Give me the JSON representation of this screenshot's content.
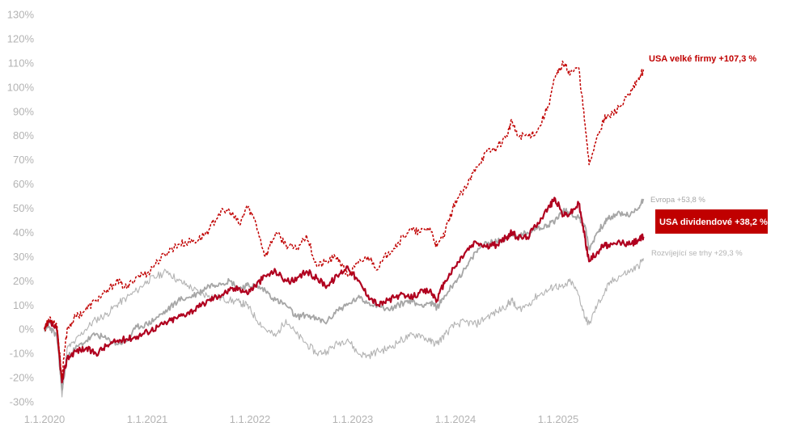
{
  "chart_data": {
    "type": "line",
    "title": "",
    "xlabel": "",
    "ylabel": "",
    "ylim": [
      -30,
      130
    ],
    "y_ticks": [
      "130%",
      "120%",
      "110%",
      "100%",
      "90%",
      "80%",
      "70%",
      "60%",
      "50%",
      "40%",
      "30%",
      "20%",
      "10%",
      "0%",
      "-10%",
      "-20%",
      "-30%"
    ],
    "y_tick_values": [
      130,
      120,
      110,
      100,
      90,
      80,
      70,
      60,
      50,
      40,
      30,
      20,
      10,
      0,
      -10,
      -20,
      -30
    ],
    "x_ticks": [
      "1.1.2020",
      "1.1.2021",
      "1.1.2022",
      "1.1.2023",
      "1.1.2024",
      "1.1.2025"
    ],
    "x_tick_values": [
      2020,
      2021,
      2022,
      2023,
      2024,
      2025
    ],
    "xlim": [
      2020,
      2025.83
    ],
    "grid": false,
    "colors": {
      "usa_large": "#c00000",
      "usa_dividend": "#b0001f",
      "europe": "#a6a6a6",
      "emerging": "#b3b3b3",
      "label_box": "#c00000",
      "tick": "#b3b3b3"
    },
    "series": [
      {
        "key": "usa_large",
        "name": "USA velké firmy +107,3 %",
        "x": [
          2020.0,
          2020.05,
          2020.12,
          2020.17,
          2020.22,
          2020.3,
          2020.4,
          2020.5,
          2020.6,
          2020.7,
          2020.8,
          2020.9,
          2021.0,
          2021.1,
          2021.2,
          2021.3,
          2021.4,
          2021.5,
          2021.6,
          2021.7,
          2021.8,
          2021.9,
          2021.97,
          2022.05,
          2022.15,
          2022.25,
          2022.35,
          2022.45,
          2022.55,
          2022.65,
          2022.75,
          2022.85,
          2022.95,
          2023.05,
          2023.15,
          2023.25,
          2023.35,
          2023.45,
          2023.55,
          2023.65,
          2023.75,
          2023.82,
          2023.9,
          2024.0,
          2024.1,
          2024.2,
          2024.3,
          2024.4,
          2024.5,
          2024.55,
          2024.6,
          2024.7,
          2024.8,
          2024.9,
          2024.97,
          2025.05,
          2025.12,
          2025.2,
          2025.26,
          2025.3,
          2025.38,
          2025.45,
          2025.5,
          2025.6,
          2025.7,
          2025.78,
          2025.83
        ],
        "values": [
          0,
          5,
          2,
          -20,
          0,
          5,
          8,
          12,
          15,
          20,
          17,
          22,
          23,
          28,
          32,
          35,
          36,
          37,
          41,
          48,
          49,
          43,
          51,
          45,
          30,
          40,
          35,
          33,
          39,
          26,
          28,
          30,
          22,
          27,
          30,
          25,
          32,
          36,
          41,
          40,
          42,
          34,
          40,
          53,
          58,
          67,
          73,
          75,
          80,
          86,
          80,
          80,
          82,
          92,
          104,
          110,
          106,
          108,
          85,
          68,
          80,
          87,
          88,
          92,
          97,
          103,
          107.3
        ]
      },
      {
        "key": "europe",
        "name": "Evropa +53,8 %",
        "x": [
          2020.0,
          2020.05,
          2020.12,
          2020.17,
          2020.22,
          2020.3,
          2020.4,
          2020.5,
          2020.6,
          2020.7,
          2020.8,
          2020.9,
          2021.0,
          2021.1,
          2021.2,
          2021.3,
          2021.4,
          2021.5,
          2021.6,
          2021.7,
          2021.8,
          2021.9,
          2021.97,
          2022.05,
          2022.15,
          2022.25,
          2022.35,
          2022.45,
          2022.55,
          2022.65,
          2022.75,
          2022.85,
          2022.95,
          2023.05,
          2023.15,
          2023.25,
          2023.35,
          2023.45,
          2023.55,
          2023.65,
          2023.75,
          2023.82,
          2023.9,
          2024.0,
          2024.1,
          2024.2,
          2024.3,
          2024.4,
          2024.5,
          2024.55,
          2024.6,
          2024.7,
          2024.8,
          2024.9,
          2024.97,
          2025.05,
          2025.12,
          2025.2,
          2025.26,
          2025.3,
          2025.38,
          2025.45,
          2025.5,
          2025.6,
          2025.7,
          2025.78,
          2025.83
        ],
        "values": [
          0,
          1,
          -3,
          -25,
          -12,
          -8,
          -5,
          -2,
          -4,
          -6,
          -5,
          1,
          2,
          5,
          8,
          12,
          13,
          15,
          18,
          19,
          20,
          17,
          18,
          18,
          16,
          12,
          10,
          5,
          6,
          4,
          3,
          8,
          10,
          13,
          11,
          10,
          8,
          10,
          12,
          10,
          11,
          9,
          14,
          20,
          25,
          32,
          36,
          36,
          38,
          40,
          38,
          40,
          42,
          43,
          45,
          49,
          48,
          46,
          43,
          33,
          40,
          44,
          46,
          48,
          47,
          50,
          53.8
        ]
      },
      {
        "key": "usa_dividend",
        "name": "USA dividendové +38,2 %",
        "x": [
          2020.0,
          2020.05,
          2020.12,
          2020.17,
          2020.22,
          2020.3,
          2020.4,
          2020.5,
          2020.6,
          2020.7,
          2020.8,
          2020.9,
          2021.0,
          2021.1,
          2021.2,
          2021.3,
          2021.4,
          2021.5,
          2021.6,
          2021.7,
          2021.8,
          2021.9,
          2021.97,
          2022.05,
          2022.15,
          2022.25,
          2022.35,
          2022.45,
          2022.55,
          2022.65,
          2022.75,
          2022.85,
          2022.95,
          2023.05,
          2023.15,
          2023.25,
          2023.35,
          2023.45,
          2023.55,
          2023.65,
          2023.75,
          2023.82,
          2023.9,
          2024.0,
          2024.1,
          2024.2,
          2024.3,
          2024.4,
          2024.5,
          2024.55,
          2024.6,
          2024.7,
          2024.8,
          2024.9,
          2024.97,
          2025.05,
          2025.12,
          2025.2,
          2025.26,
          2025.3,
          2025.38,
          2025.45,
          2025.5,
          2025.6,
          2025.7,
          2025.78,
          2025.83
        ],
        "values": [
          0,
          3,
          0,
          -22,
          -12,
          -9,
          -8,
          -10,
          -7,
          -5,
          -4,
          -3,
          -1,
          1,
          3,
          5,
          7,
          9,
          12,
          14,
          16,
          17,
          15,
          18,
          22,
          24,
          20,
          20,
          24,
          21,
          18,
          22,
          26,
          20,
          14,
          10,
          12,
          14,
          13,
          15,
          16,
          12,
          20,
          26,
          32,
          36,
          34,
          35,
          38,
          40,
          38,
          38,
          44,
          50,
          54,
          47,
          48,
          52,
          38,
          28,
          32,
          35,
          34,
          36,
          35,
          37,
          38.2
        ]
      },
      {
        "key": "emerging",
        "name": "Rozvíjející se trhy +29,3 %",
        "x": [
          2020.0,
          2020.05,
          2020.12,
          2020.17,
          2020.22,
          2020.3,
          2020.4,
          2020.5,
          2020.6,
          2020.7,
          2020.8,
          2020.9,
          2021.0,
          2021.1,
          2021.2,
          2021.3,
          2021.4,
          2021.5,
          2021.6,
          2021.7,
          2021.8,
          2021.9,
          2021.97,
          2022.05,
          2022.15,
          2022.25,
          2022.35,
          2022.45,
          2022.55,
          2022.65,
          2022.75,
          2022.85,
          2022.95,
          2023.05,
          2023.15,
          2023.25,
          2023.35,
          2023.45,
          2023.55,
          2023.65,
          2023.75,
          2023.82,
          2023.9,
          2024.0,
          2024.1,
          2024.2,
          2024.3,
          2024.4,
          2024.5,
          2024.55,
          2024.6,
          2024.7,
          2024.8,
          2024.9,
          2024.97,
          2025.05,
          2025.12,
          2025.2,
          2025.26,
          2025.3,
          2025.38,
          2025.45,
          2025.5,
          2025.6,
          2025.7,
          2025.78,
          2025.83
        ],
        "values": [
          0,
          3,
          0,
          -28,
          -8,
          -5,
          0,
          4,
          6,
          10,
          13,
          16,
          20,
          22,
          24,
          20,
          18,
          15,
          14,
          13,
          12,
          11,
          10,
          5,
          0,
          -3,
          4,
          -2,
          -6,
          -10,
          -9,
          -6,
          -4,
          -10,
          -11,
          -9,
          -8,
          -5,
          -3,
          -2,
          -5,
          -6,
          -2,
          2,
          3,
          2,
          5,
          7,
          10,
          12,
          8,
          10,
          14,
          16,
          18,
          17,
          20,
          14,
          5,
          2,
          10,
          15,
          19,
          22,
          24,
          26,
          29.3
        ]
      }
    ],
    "annotations": [
      {
        "key": "usa_large",
        "text": "USA velké firmy +107,3 %"
      },
      {
        "key": "europe",
        "text": "Evropa +53,8 %"
      },
      {
        "key": "usa_dividend",
        "text": "USA dividendové +38,2 %"
      },
      {
        "key": "emerging",
        "text": "Rozvíjející se trhy +29,3 %"
      }
    ]
  }
}
